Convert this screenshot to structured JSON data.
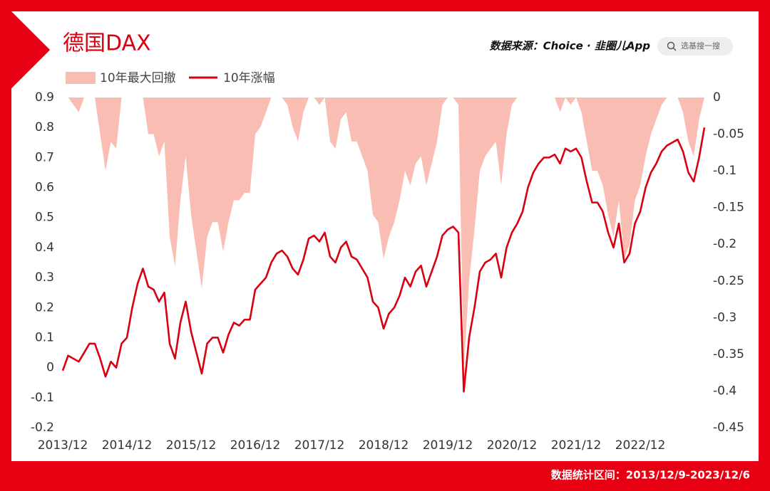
{
  "chart_data": {
    "type": "line",
    "title": "德国DAX",
    "source": "数据来源：Choice · 韭圈儿App",
    "search_placeholder": "选基搜一搜",
    "footnote": "数据统计区间：2013/12/9-2023/12/6",
    "x": [
      "2013/12",
      "2014/01",
      "2014/02",
      "2014/03",
      "2014/04",
      "2014/05",
      "2014/06",
      "2014/07",
      "2014/08",
      "2014/09",
      "2014/10",
      "2014/11",
      "2014/12",
      "2015/01",
      "2015/02",
      "2015/03",
      "2015/04",
      "2015/05",
      "2015/06",
      "2015/07",
      "2015/08",
      "2015/09",
      "2015/10",
      "2015/11",
      "2015/12",
      "2016/01",
      "2016/02",
      "2016/03",
      "2016/04",
      "2016/05",
      "2016/06",
      "2016/07",
      "2016/08",
      "2016/09",
      "2016/10",
      "2016/11",
      "2016/12",
      "2017/01",
      "2017/02",
      "2017/03",
      "2017/04",
      "2017/05",
      "2017/06",
      "2017/07",
      "2017/08",
      "2017/09",
      "2017/10",
      "2017/11",
      "2017/12",
      "2018/01",
      "2018/02",
      "2018/03",
      "2018/04",
      "2018/05",
      "2018/06",
      "2018/07",
      "2018/08",
      "2018/09",
      "2018/10",
      "2018/11",
      "2018/12",
      "2019/01",
      "2019/02",
      "2019/03",
      "2019/04",
      "2019/05",
      "2019/06",
      "2019/07",
      "2019/08",
      "2019/09",
      "2019/10",
      "2019/11",
      "2019/12",
      "2020/01",
      "2020/02",
      "2020/03",
      "2020/04",
      "2020/05",
      "2020/06",
      "2020/07",
      "2020/08",
      "2020/09",
      "2020/10",
      "2020/11",
      "2020/12",
      "2021/01",
      "2021/02",
      "2021/03",
      "2021/04",
      "2021/05",
      "2021/06",
      "2021/07",
      "2021/08",
      "2021/09",
      "2021/10",
      "2021/11",
      "2021/12",
      "2022/01",
      "2022/02",
      "2022/03",
      "2022/04",
      "2022/05",
      "2022/06",
      "2022/07",
      "2022/08",
      "2022/09",
      "2022/10",
      "2022/11",
      "2022/12",
      "2023/01",
      "2023/02",
      "2023/03",
      "2023/04",
      "2023/05",
      "2023/06",
      "2023/07",
      "2023/08",
      "2023/09",
      "2023/10",
      "2023/11",
      "2023/12"
    ],
    "xticks": [
      "2013/12",
      "2014/12",
      "2015/12",
      "2016/12",
      "2017/12",
      "2018/12",
      "2019/12",
      "2020/12",
      "2021/12",
      "2022/12"
    ],
    "ylim": [
      -0.2,
      0.9
    ],
    "yticks": [
      0.9,
      0.8,
      0.7,
      0.6,
      0.5,
      0.4,
      0.3,
      0.2,
      0.1,
      0,
      -0.1,
      -0.2
    ],
    "y2lim": [
      -0.45,
      0
    ],
    "y2ticks": [
      0,
      -0.05,
      -0.1,
      -0.15,
      -0.2,
      -0.25,
      -0.3,
      -0.35,
      -0.4,
      -0.45
    ],
    "grid": false,
    "series": [
      {
        "name": "10年最大回撤",
        "type": "area",
        "axis": "y2",
        "color": "#f9bdb4",
        "values": [
          0,
          0,
          -0.01,
          -0.02,
          0,
          0,
          0,
          -0.05,
          -0.1,
          -0.06,
          -0.07,
          0,
          0,
          0,
          0,
          0,
          -0.05,
          -0.05,
          -0.08,
          -0.06,
          -0.19,
          -0.23,
          -0.14,
          -0.08,
          -0.16,
          -0.21,
          -0.26,
          -0.19,
          -0.17,
          -0.17,
          -0.21,
          -0.17,
          -0.14,
          -0.14,
          -0.13,
          -0.13,
          -0.05,
          -0.04,
          -0.02,
          0,
          0,
          0,
          -0.01,
          -0.04,
          -0.06,
          -0.02,
          0,
          0,
          -0.01,
          0,
          -0.06,
          -0.07,
          -0.03,
          -0.02,
          -0.06,
          -0.06,
          -0.08,
          -0.1,
          -0.16,
          -0.17,
          -0.22,
          -0.19,
          -0.17,
          -0.14,
          -0.1,
          -0.12,
          -0.09,
          -0.08,
          -0.12,
          -0.09,
          -0.06,
          -0.01,
          0,
          0,
          -0.01,
          -0.37,
          -0.25,
          -0.18,
          -0.1,
          -0.08,
          -0.07,
          -0.06,
          -0.12,
          -0.05,
          -0.01,
          0,
          0,
          0,
          0,
          0,
          0,
          0,
          0,
          -0.02,
          0,
          -0.01,
          0,
          -0.02,
          -0.06,
          -0.1,
          -0.1,
          -0.12,
          -0.16,
          -0.19,
          -0.14,
          -0.22,
          -0.2,
          -0.14,
          -0.12,
          -0.08,
          -0.05,
          -0.03,
          -0.01,
          0,
          0,
          0,
          -0.02,
          -0.06,
          -0.08,
          -0.03,
          0
        ]
      },
      {
        "name": "10年涨幅",
        "type": "line",
        "axis": "y",
        "color": "#d9000f",
        "values": [
          -0.01,
          0.04,
          0.03,
          0.02,
          0.05,
          0.08,
          0.08,
          0.03,
          -0.03,
          0.02,
          0,
          0.08,
          0.1,
          0.2,
          0.28,
          0.33,
          0.27,
          0.26,
          0.22,
          0.25,
          0.08,
          0.03,
          0.15,
          0.22,
          0.12,
          0.05,
          -0.02,
          0.08,
          0.1,
          0.1,
          0.05,
          0.11,
          0.15,
          0.14,
          0.16,
          0.16,
          0.26,
          0.28,
          0.3,
          0.35,
          0.38,
          0.39,
          0.37,
          0.33,
          0.31,
          0.36,
          0.43,
          0.44,
          0.42,
          0.45,
          0.37,
          0.35,
          0.4,
          0.42,
          0.37,
          0.36,
          0.33,
          0.3,
          0.22,
          0.2,
          0.13,
          0.18,
          0.2,
          0.24,
          0.3,
          0.27,
          0.32,
          0.34,
          0.27,
          0.32,
          0.37,
          0.44,
          0.46,
          0.47,
          0.45,
          -0.08,
          0.1,
          0.2,
          0.32,
          0.35,
          0.36,
          0.38,
          0.3,
          0.4,
          0.45,
          0.48,
          0.52,
          0.6,
          0.65,
          0.68,
          0.7,
          0.7,
          0.71,
          0.68,
          0.73,
          0.72,
          0.73,
          0.7,
          0.62,
          0.55,
          0.55,
          0.52,
          0.45,
          0.4,
          0.48,
          0.35,
          0.38,
          0.48,
          0.52,
          0.6,
          0.65,
          0.68,
          0.72,
          0.74,
          0.75,
          0.76,
          0.72,
          0.65,
          0.62,
          0.7,
          0.8
        ]
      }
    ]
  }
}
